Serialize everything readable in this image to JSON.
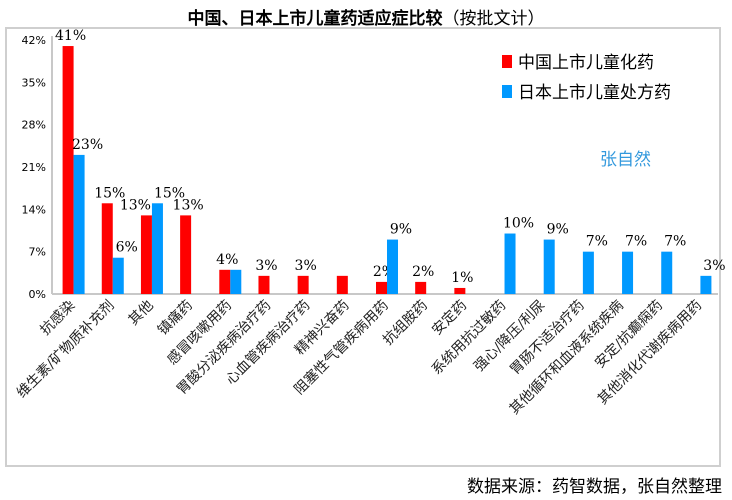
{
  "title": "中国、日本上市儿童药适应症比较",
  "subtitle": "（按批文计）",
  "source": "数据来源：药智数据，张自然整理",
  "watermark": "张自然",
  "colors": {
    "china": "#ff0000",
    "japan": "#0099ff",
    "watermark": "#3399dd"
  },
  "chart_data": {
    "type": "bar",
    "ylim": [
      0,
      42
    ],
    "yticks": [
      0,
      7,
      14,
      21,
      28,
      35,
      42
    ],
    "ytick_labels": [
      "0%",
      "7%",
      "14%",
      "21%",
      "28%",
      "35%",
      "42%"
    ],
    "grid": false,
    "legend_position": "top-right",
    "categories": [
      "抗感染",
      "维生素/矿物质补充剂",
      "其他",
      "镇痛药",
      "感冒咳嗽用药",
      "胃酸分泌疾病治疗药",
      "心血管疾病治疗药",
      "精神兴奋药",
      "阻塞性气管疾病用药",
      "抗组胺药",
      "安定药",
      "系统用抗过敏药",
      "强心/降压/利尿",
      "胃肠不适治疗药",
      "其他循环和血液系统疾病",
      "安定/抗癫痫药",
      "其他消化代谢疾病用药"
    ],
    "series": [
      {
        "name": "中国上市儿童化药",
        "values": [
          41,
          15,
          13,
          13,
          4,
          3,
          3,
          3,
          2,
          2,
          1,
          0,
          0,
          0,
          0,
          0,
          0
        ],
        "labels": [
          "41%",
          "15%",
          "13%",
          "13%",
          "4%",
          "3%",
          "3%",
          "",
          "2%",
          "2%",
          "1%",
          "",
          "",
          "",
          "",
          "",
          ""
        ]
      },
      {
        "name": "日本上市儿童处方药",
        "values": [
          23,
          6,
          15,
          0,
          4,
          0,
          0,
          0,
          9,
          0,
          0,
          10,
          9,
          7,
          7,
          7,
          3
        ],
        "labels": [
          "23%",
          "6%",
          "15%",
          "",
          "",
          "",
          "",
          "",
          "9%",
          "",
          "",
          "10%",
          "9%",
          "7%",
          "7%",
          "7%",
          "3%"
        ]
      }
    ]
  }
}
